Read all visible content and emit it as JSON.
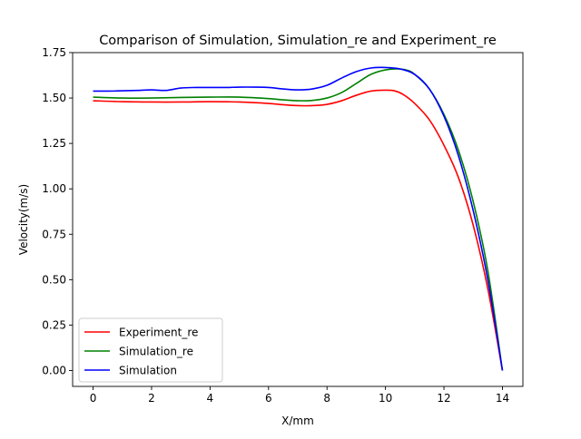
{
  "chart_data": {
    "type": "line",
    "title": "Comparison of Simulation, Simulation_re and Experiment_re",
    "xlabel": "X/mm",
    "ylabel": "Velocity(m/s)",
    "xlim": [
      -0.7,
      14.7
    ],
    "ylim": [
      -0.0875,
      1.75
    ],
    "xticks": [
      0,
      2,
      4,
      6,
      8,
      10,
      12,
      14
    ],
    "xtick_labels": [
      "0",
      "2",
      "4",
      "6",
      "8",
      "10",
      "12",
      "14"
    ],
    "yticks": [
      0.0,
      0.25,
      0.5,
      0.75,
      1.0,
      1.25,
      1.5,
      1.75
    ],
    "ytick_labels": [
      "0.00",
      "0.25",
      "0.50",
      "0.75",
      "1.00",
      "1.25",
      "1.50",
      "1.75"
    ],
    "grid": false,
    "legend_position": "lower-left",
    "series": [
      {
        "name": "Experiment_re",
        "color": "#ff0000",
        "x": [
          0,
          1,
          2,
          3,
          4,
          5,
          6,
          6.5,
          7,
          7.5,
          8,
          8.5,
          9,
          9.5,
          10,
          10.3,
          10.6,
          11,
          11.5,
          12,
          12.5,
          13,
          13.5,
          14
        ],
        "y": [
          1.485,
          1.48,
          1.478,
          1.478,
          1.48,
          1.478,
          1.47,
          1.463,
          1.458,
          1.458,
          1.465,
          1.485,
          1.515,
          1.538,
          1.543,
          1.54,
          1.52,
          1.47,
          1.38,
          1.24,
          1.06,
          0.8,
          0.45,
          0.0
        ]
      },
      {
        "name": "Simulation_re",
        "color": "#008000",
        "x": [
          0,
          1,
          2,
          3,
          4,
          5,
          6,
          6.5,
          7,
          7.5,
          8,
          8.5,
          9,
          9.5,
          10,
          10.5,
          10.8,
          11,
          11.5,
          12,
          12.5,
          13,
          13.5,
          14
        ],
        "y": [
          1.505,
          1.5,
          1.5,
          1.503,
          1.505,
          1.505,
          1.497,
          1.49,
          1.485,
          1.487,
          1.5,
          1.53,
          1.58,
          1.63,
          1.655,
          1.66,
          1.65,
          1.63,
          1.55,
          1.41,
          1.21,
          0.93,
          0.55,
          0.0
        ]
      },
      {
        "name": "Simulation",
        "color": "#0000ff",
        "x": [
          0,
          0.5,
          1,
          1.5,
          2,
          2.5,
          3,
          3.5,
          4,
          4.5,
          5,
          5.5,
          6,
          6.5,
          7,
          7.5,
          8,
          8.5,
          9,
          9.5,
          10,
          10.5,
          11,
          11.5,
          12,
          12.5,
          13,
          13.5,
          14
        ],
        "y": [
          1.538,
          1.538,
          1.54,
          1.542,
          1.545,
          1.542,
          1.555,
          1.558,
          1.558,
          1.558,
          1.56,
          1.56,
          1.558,
          1.55,
          1.545,
          1.55,
          1.57,
          1.61,
          1.645,
          1.665,
          1.668,
          1.66,
          1.63,
          1.55,
          1.4,
          1.18,
          0.88,
          0.5,
          0.0
        ]
      }
    ]
  }
}
